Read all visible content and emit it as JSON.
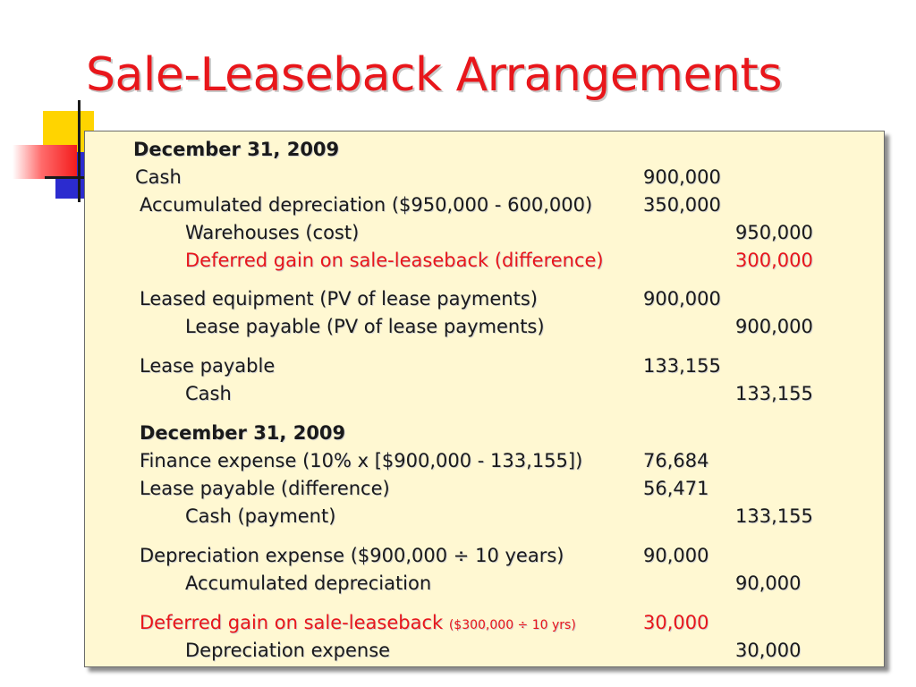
{
  "title": "Sale-Leaseback Arrangements",
  "colors": {
    "title": "#e8161b",
    "panel_bg": "#fff8d2",
    "accent_red": "#e8161b"
  },
  "entries": [
    {
      "account": "December 31, 2009",
      "debit": "",
      "credit": ""
    },
    {
      "account": "Cash",
      "debit": "900,000",
      "credit": ""
    },
    {
      "account": "Accumulated depreciation ($950,000 - 600,000)",
      "debit": "350,000",
      "credit": ""
    },
    {
      "account": "Warehouses (cost)",
      "debit": "",
      "credit": "950,000"
    },
    {
      "account": "Deferred gain on sale-leaseback (difference)",
      "debit": "",
      "credit": "300,000"
    },
    {
      "account": "Leased equipment (PV of lease payments)",
      "debit": "900,000",
      "credit": ""
    },
    {
      "account": "Lease payable (PV of lease payments)",
      "debit": "",
      "credit": "900,000"
    },
    {
      "account": "Lease payable",
      "debit": "133,155",
      "credit": ""
    },
    {
      "account": "Cash",
      "debit": "",
      "credit": "133,155"
    },
    {
      "account": "December 31, 2009",
      "debit": "",
      "credit": ""
    },
    {
      "account": "Finance expense (10% x [$900,000 - 133,155])",
      "debit": "76,684",
      "credit": ""
    },
    {
      "account": "Lease payable (difference)",
      "debit": "56,471",
      "credit": ""
    },
    {
      "account": "Cash (payment)",
      "debit": "",
      "credit": "133,155"
    },
    {
      "account": "Depreciation expense ($900,000 ÷ 10 years)",
      "debit": "90,000",
      "credit": ""
    },
    {
      "account": "Accumulated depreciation",
      "debit": "",
      "credit": "90,000"
    },
    {
      "account": "Deferred gain on sale-leaseback",
      "note": "($300,000 ÷ 10 yrs)",
      "debit": "30,000",
      "credit": ""
    },
    {
      "account": "Depreciation expense",
      "debit": "",
      "credit": "30,000"
    }
  ]
}
